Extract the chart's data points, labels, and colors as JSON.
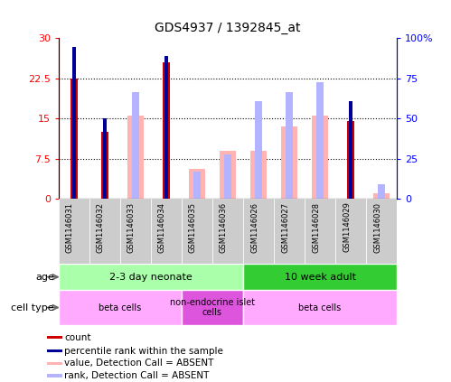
{
  "title": "GDS4937 / 1392845_at",
  "samples": [
    "GSM1146031",
    "GSM1146032",
    "GSM1146033",
    "GSM1146034",
    "GSM1146035",
    "GSM1146036",
    "GSM1146026",
    "GSM1146027",
    "GSM1146028",
    "GSM1146029",
    "GSM1146030"
  ],
  "count_values": [
    22.5,
    12.5,
    0,
    25.5,
    0,
    0,
    0,
    0,
    0,
    14.5,
    0
  ],
  "percentile_values": [
    28.3,
    15.0,
    0,
    26.7,
    0,
    0,
    0,
    0,
    0,
    18.3,
    0
  ],
  "absent_value_values": [
    0,
    0,
    15.5,
    0,
    5.5,
    9.0,
    9.0,
    13.5,
    15.5,
    0,
    1.0
  ],
  "absent_rank_values": [
    0,
    0,
    20.0,
    0,
    5.0,
    8.3,
    18.3,
    20.0,
    21.7,
    0,
    2.7
  ],
  "ylim_left": [
    0,
    30
  ],
  "ylim_right": [
    0,
    100
  ],
  "yticks_left": [
    0,
    7.5,
    15,
    22.5,
    30
  ],
  "yticks_right": [
    0,
    25,
    50,
    75,
    100
  ],
  "color_count": "#cc0000",
  "color_percentile": "#000099",
  "color_absent_value": "#ffb3b3",
  "color_absent_rank": "#b3b3ff",
  "age_groups": [
    {
      "label": "2-3 day neonate",
      "start": 0,
      "end": 6,
      "color": "#aaffaa"
    },
    {
      "label": "10 week adult",
      "start": 6,
      "end": 11,
      "color": "#33cc33"
    }
  ],
  "cell_groups": [
    {
      "label": "beta cells",
      "start": 0,
      "end": 4,
      "color": "#ffaaff"
    },
    {
      "label": "non-endocrine islet\ncells",
      "start": 4,
      "end": 6,
      "color": "#dd55dd"
    },
    {
      "label": "beta cells",
      "start": 6,
      "end": 11,
      "color": "#ffaaff"
    }
  ],
  "legend_items": [
    {
      "label": "count",
      "color": "#cc0000"
    },
    {
      "label": "percentile rank within the sample",
      "color": "#000099"
    },
    {
      "label": "value, Detection Call = ABSENT",
      "color": "#ffb3b3"
    },
    {
      "label": "rank, Detection Call = ABSENT",
      "color": "#b3b3ff"
    }
  ]
}
